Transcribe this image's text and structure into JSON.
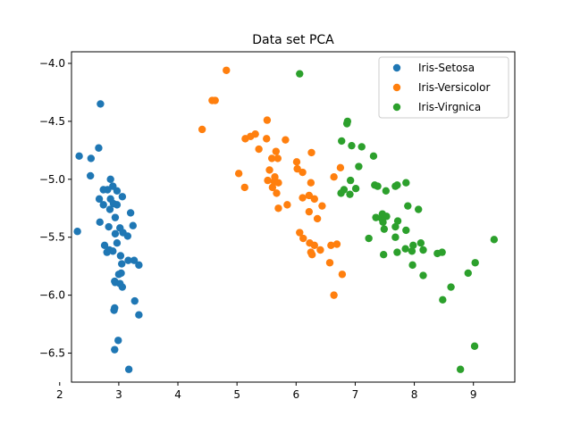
{
  "chart_data": {
    "type": "scatter",
    "title": "Data set PCA",
    "xlabel": "",
    "ylabel": "",
    "xlim": [
      2.2,
      9.7
    ],
    "ylim": [
      -6.75,
      -3.9
    ],
    "xticks": [
      2,
      3,
      4,
      5,
      6,
      7,
      8,
      9
    ],
    "yticks": [
      -4.0,
      -4.5,
      -5.0,
      -5.5,
      -6.0,
      -6.5
    ],
    "xtick_labels": [
      "2",
      "3",
      "4",
      "5",
      "6",
      "7",
      "8",
      "9"
    ],
    "ytick_labels": [
      "−4.0",
      "−4.5",
      "−5.0",
      "−5.5",
      "−6.0",
      "−6.5"
    ],
    "grid": false,
    "legend_position": "top-right",
    "series": [
      {
        "name": "Iris-Setosa",
        "color": "#1f77b4",
        "points": [
          [
            2.69,
            -4.35
          ],
          [
            2.33,
            -4.8
          ],
          [
            2.53,
            -4.82
          ],
          [
            2.66,
            -4.73
          ],
          [
            2.52,
            -4.97
          ],
          [
            2.3,
            -5.45
          ],
          [
            2.68,
            -5.37
          ],
          [
            2.86,
            -5.0
          ],
          [
            2.9,
            -5.06
          ],
          [
            2.81,
            -5.09
          ],
          [
            2.74,
            -5.09
          ],
          [
            2.97,
            -5.1
          ],
          [
            3.06,
            -5.15
          ],
          [
            2.67,
            -5.17
          ],
          [
            2.86,
            -5.17
          ],
          [
            2.74,
            -5.22
          ],
          [
            2.97,
            -5.22
          ],
          [
            2.91,
            -5.21
          ],
          [
            2.85,
            -5.26
          ],
          [
            3.2,
            -5.29
          ],
          [
            2.94,
            -5.33
          ],
          [
            3.24,
            -5.4
          ],
          [
            2.83,
            -5.41
          ],
          [
            3.02,
            -5.42
          ],
          [
            2.94,
            -5.47
          ],
          [
            3.07,
            -5.46
          ],
          [
            3.15,
            -5.49
          ],
          [
            2.97,
            -5.55
          ],
          [
            2.76,
            -5.57
          ],
          [
            2.84,
            -5.61
          ],
          [
            2.9,
            -5.62
          ],
          [
            2.8,
            -5.63
          ],
          [
            3.03,
            -5.66
          ],
          [
            3.05,
            -5.73
          ],
          [
            3.16,
            -5.7
          ],
          [
            3.26,
            -5.7
          ],
          [
            3.34,
            -5.74
          ],
          [
            3.04,
            -5.81
          ],
          [
            3.0,
            -5.82
          ],
          [
            2.94,
            -5.89
          ],
          [
            3.02,
            -5.9
          ],
          [
            3.06,
            -5.93
          ],
          [
            3.27,
            -6.05
          ],
          [
            2.93,
            -6.11
          ],
          [
            2.92,
            -6.13
          ],
          [
            3.34,
            -6.17
          ],
          [
            2.99,
            -6.39
          ],
          [
            2.93,
            -6.47
          ],
          [
            3.17,
            -6.64
          ],
          [
            2.93,
            -5.88
          ]
        ]
      },
      {
        "name": "Iris-Versicolor",
        "color": "#ff7f0e",
        "points": [
          [
            4.82,
            -4.06
          ],
          [
            4.58,
            -4.32
          ],
          [
            4.63,
            -4.32
          ],
          [
            4.41,
            -4.57
          ],
          [
            5.51,
            -4.49
          ],
          [
            5.31,
            -4.61
          ],
          [
            5.23,
            -4.63
          ],
          [
            5.14,
            -4.65
          ],
          [
            5.5,
            -4.65
          ],
          [
            5.82,
            -4.66
          ],
          [
            5.37,
            -4.74
          ],
          [
            5.66,
            -4.76
          ],
          [
            6.26,
            -4.77
          ],
          [
            5.59,
            -4.82
          ],
          [
            5.69,
            -4.82
          ],
          [
            6.01,
            -4.85
          ],
          [
            6.11,
            -4.94
          ],
          [
            5.55,
            -4.92
          ],
          [
            6.02,
            -4.91
          ],
          [
            5.64,
            -4.98
          ],
          [
            5.03,
            -4.95
          ],
          [
            5.52,
            -5.01
          ],
          [
            5.63,
            -5.02
          ],
          [
            5.7,
            -5.03
          ],
          [
            6.25,
            -5.03
          ],
          [
            5.6,
            -5.07
          ],
          [
            5.13,
            -5.07
          ],
          [
            5.67,
            -5.12
          ],
          [
            6.11,
            -5.16
          ],
          [
            6.22,
            -5.14
          ],
          [
            6.31,
            -5.17
          ],
          [
            5.85,
            -5.22
          ],
          [
            5.7,
            -5.25
          ],
          [
            6.44,
            -5.23
          ],
          [
            6.22,
            -5.28
          ],
          [
            6.36,
            -5.34
          ],
          [
            6.06,
            -5.46
          ],
          [
            6.12,
            -5.51
          ],
          [
            6.23,
            -5.55
          ],
          [
            6.31,
            -5.57
          ],
          [
            6.41,
            -5.61
          ],
          [
            6.25,
            -5.63
          ],
          [
            6.69,
            -5.56
          ],
          [
            6.59,
            -5.57
          ],
          [
            6.27,
            -5.65
          ],
          [
            6.57,
            -5.72
          ],
          [
            6.78,
            -5.82
          ],
          [
            6.64,
            -6.0
          ],
          [
            6.75,
            -4.9
          ],
          [
            6.64,
            -4.98
          ]
        ]
      },
      {
        "name": "Iris-Virgnica",
        "color": "#2ca02c",
        "points": [
          [
            6.06,
            -4.09
          ],
          [
            6.87,
            -4.5
          ],
          [
            6.86,
            -4.52
          ],
          [
            6.77,
            -4.67
          ],
          [
            6.94,
            -4.71
          ],
          [
            7.11,
            -4.72
          ],
          [
            7.31,
            -4.8
          ],
          [
            7.06,
            -4.89
          ],
          [
            6.92,
            -5.01
          ],
          [
            7.01,
            -5.08
          ],
          [
            6.81,
            -5.09
          ],
          [
            6.76,
            -5.12
          ],
          [
            6.91,
            -5.13
          ],
          [
            7.38,
            -5.06
          ],
          [
            7.52,
            -5.1
          ],
          [
            7.68,
            -5.06
          ],
          [
            7.71,
            -5.05
          ],
          [
            7.86,
            -5.03
          ],
          [
            8.07,
            -5.26
          ],
          [
            7.89,
            -5.23
          ],
          [
            7.35,
            -5.33
          ],
          [
            7.45,
            -5.34
          ],
          [
            7.53,
            -5.32
          ],
          [
            7.47,
            -5.37
          ],
          [
            7.72,
            -5.36
          ],
          [
            7.49,
            -5.43
          ],
          [
            7.68,
            -5.41
          ],
          [
            7.86,
            -5.44
          ],
          [
            7.23,
            -5.51
          ],
          [
            7.68,
            -5.5
          ],
          [
            8.11,
            -5.55
          ],
          [
            7.98,
            -5.57
          ],
          [
            8.15,
            -5.61
          ],
          [
            7.85,
            -5.6
          ],
          [
            7.96,
            -5.62
          ],
          [
            7.71,
            -5.63
          ],
          [
            7.48,
            -5.65
          ],
          [
            8.39,
            -5.64
          ],
          [
            8.47,
            -5.63
          ],
          [
            9.35,
            -5.52
          ],
          [
            8.15,
            -5.83
          ],
          [
            7.97,
            -5.74
          ],
          [
            9.03,
            -5.72
          ],
          [
            8.91,
            -5.81
          ],
          [
            8.62,
            -5.93
          ],
          [
            8.48,
            -6.04
          ],
          [
            9.02,
            -6.44
          ],
          [
            8.78,
            -6.64
          ],
          [
            7.46,
            -5.3
          ],
          [
            7.33,
            -5.05
          ]
        ]
      }
    ]
  }
}
